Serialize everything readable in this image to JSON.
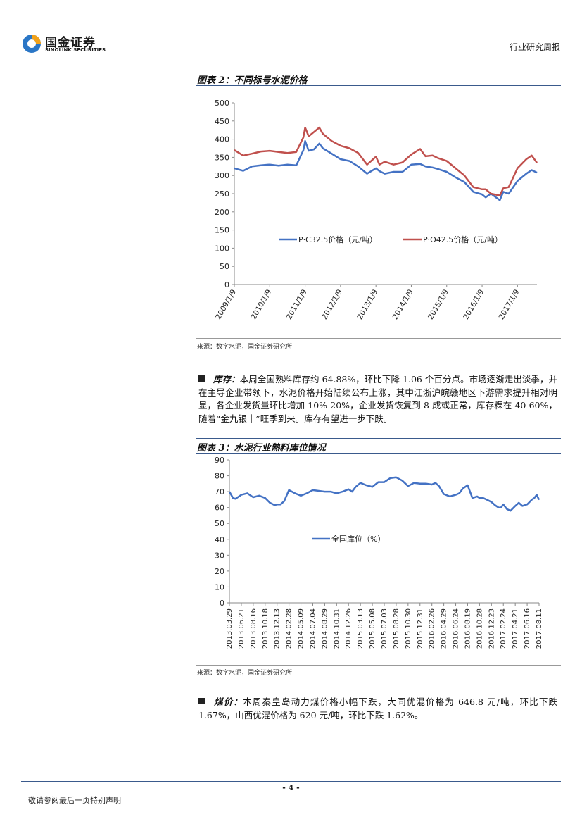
{
  "header": {
    "logo_cn": "国金证券",
    "logo_en": "SINOLINK SECURITIES",
    "report_type": "行业研究周报"
  },
  "figure2": {
    "title": "图表 2：不同标号水泥价格",
    "source": "来源：数字水泥，国金证券研究所",
    "chart_data": {
      "type": "line",
      "title": "",
      "xlabel": "",
      "ylabel": "",
      "ylim": [
        0,
        500
      ],
      "yticks": [
        "0",
        "50",
        "100",
        "150",
        "200",
        "250",
        "300",
        "350",
        "400",
        "450",
        "500"
      ],
      "xticks": [
        "2009/1/9",
        "2010/1/9",
        "2011/1/9",
        "2012/1/9",
        "2013/1/9",
        "2014/1/9",
        "2015/1/9",
        "2016/1/9",
        "2017/1/9"
      ],
      "x": [
        2009.0,
        2009.25,
        2009.5,
        2009.75,
        2010.0,
        2010.25,
        2010.5,
        2010.75,
        2010.95,
        2011.0,
        2011.1,
        2011.25,
        2011.4,
        2011.5,
        2011.75,
        2012.0,
        2012.25,
        2012.5,
        2012.75,
        2013.0,
        2013.1,
        2013.25,
        2013.5,
        2013.75,
        2014.0,
        2014.25,
        2014.4,
        2014.6,
        2014.75,
        2015.0,
        2015.25,
        2015.5,
        2015.75,
        2016.0,
        2016.1,
        2016.25,
        2016.5,
        2016.6,
        2016.75,
        2017.0,
        2017.25,
        2017.4,
        2017.55
      ],
      "series": [
        {
          "name": "P·C32.5价格（元/吨）",
          "color": "#4472c4",
          "values": [
            320,
            313,
            325,
            328,
            330,
            327,
            330,
            328,
            370,
            395,
            368,
            372,
            388,
            375,
            360,
            345,
            340,
            325,
            305,
            320,
            312,
            305,
            310,
            310,
            330,
            332,
            325,
            322,
            318,
            310,
            295,
            282,
            255,
            248,
            240,
            250,
            232,
            255,
            250,
            285,
            305,
            315,
            308
          ]
        },
        {
          "name": "P·O42.5价格（元/吨）",
          "color": "#c0504d",
          "values": [
            370,
            355,
            360,
            366,
            368,
            365,
            362,
            365,
            405,
            432,
            408,
            420,
            432,
            415,
            395,
            382,
            375,
            362,
            330,
            352,
            330,
            338,
            330,
            336,
            358,
            373,
            353,
            355,
            348,
            340,
            320,
            300,
            268,
            262,
            262,
            250,
            245,
            265,
            268,
            320,
            345,
            355,
            335
          ]
        }
      ]
    }
  },
  "paragraph1": {
    "lead": "库存：",
    "text": "本周全国熟料库存约 64.88%，环比下降 1.06 个百分点。市场逐渐走出淡季，并在主导企业带领下，水泥价格开始陆续公布上涨，其中江浙沪皖赣地区下游需求提升相对明显，各企业发货量环比增加 10%-20%，企业发货恢复到 8 成或正常，库存粿在 40-60%，随着“金九银十”旺季到来。库存有望进一步下跌。"
  },
  "figure3": {
    "title": "图表 3：水泥行业熟料库位情况",
    "source": "来源：数字水泥，国金证券研究所",
    "chart_data": {
      "type": "line",
      "title": "",
      "xlabel": "",
      "ylabel": "",
      "ylim": [
        0,
        90
      ],
      "yticks": [
        "0",
        "10",
        "20",
        "30",
        "40",
        "50",
        "60",
        "70",
        "80",
        "90"
      ],
      "xticks": [
        "2013.03.29",
        "2013.06.21",
        "2013.08.16",
        "2013.10.18",
        "2013.12.13",
        "2014.02.28",
        "2014.05.09",
        "2014.07.04",
        "2014.08.29",
        "2014.10.31",
        "2014.12.26",
        "2015.03.13",
        "2015.05.08",
        "2015.07.03",
        "2015.08.28",
        "2015.10.30",
        "2015.12.31",
        "2016.02.26",
        "2016.04.29",
        "2016.06.24",
        "2016.08.19",
        "2016.10.28",
        "2016.12.23",
        "2017.02.24",
        "2017.04.21",
        "2017.06.16",
        "2017.08.11"
      ],
      "x": [
        0,
        0.3,
        0.5,
        1,
        1.5,
        2,
        2.5,
        3,
        3.4,
        3.8,
        4,
        4.3,
        4.6,
        5,
        5.5,
        6,
        6.5,
        7,
        7.5,
        8,
        8.5,
        9,
        9.5,
        10,
        10.3,
        10.6,
        11,
        11.5,
        12,
        12.5,
        13,
        13.5,
        14,
        14.5,
        15,
        15.5,
        16,
        16.5,
        17,
        17.3,
        17.6,
        18,
        18.5,
        19,
        19.3,
        19.6,
        20,
        20.4,
        20.8,
        21,
        21.3,
        21.6,
        22,
        22.3,
        22.6,
        22.8,
        23,
        23.3,
        23.6,
        24,
        24.3,
        24.6,
        25,
        25.4,
        25.6,
        25.8,
        26
      ],
      "series": [
        {
          "name": "全国库位（%）",
          "color": "#4472c4",
          "values": [
            70,
            66,
            65.5,
            68,
            69,
            66.5,
            67.5,
            66,
            63,
            61.5,
            62,
            62,
            64,
            71,
            69,
            67.5,
            69,
            71,
            70.5,
            70,
            70,
            69,
            70,
            71.5,
            70,
            73,
            75.5,
            74,
            73,
            76,
            76,
            78.5,
            79,
            77,
            73.5,
            75.5,
            75,
            75,
            74.5,
            75.5,
            73.5,
            68.5,
            67,
            68,
            69,
            72,
            74,
            66,
            67,
            66,
            66,
            65,
            63.5,
            61.5,
            60,
            60,
            62,
            59,
            58,
            61,
            63,
            61,
            62,
            65,
            66,
            68,
            64.88
          ]
        }
      ]
    }
  },
  "paragraph2": {
    "lead": "煤价：",
    "text": "本周秦皇岛动力煤价格小幅下跌，大同优混价格为 646.8 元/吨，环比下跌 1.67%，山西优混价格为 620 元/吨，环比下跌 1.62%。"
  },
  "footer": {
    "page_number": "- 4 -",
    "disclaimer": "敬请参阅最后一页特别声明"
  },
  "colors": {
    "accent": "#3a5a8c",
    "series_blue": "#4472c4",
    "series_red": "#c0504d"
  }
}
